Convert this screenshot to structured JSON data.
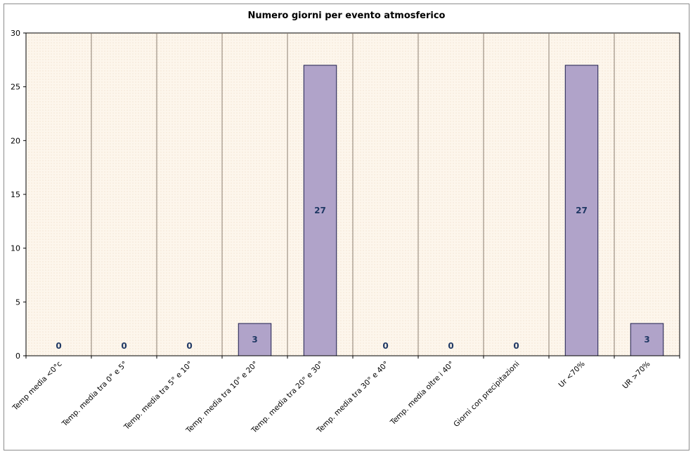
{
  "chart_data": {
    "type": "bar",
    "title": "Numero giorni per evento atmosferico",
    "categories": [
      "Temp media <0°c",
      "Temp. media tra 0° e 5°",
      "Temp. media tra 5° e 10°",
      "Temp. media tra 10° e 20°",
      "Temp. media tra 20° e 30°",
      "Temp. media tra 30° e 40°",
      "Temp. media oltre i 40°",
      "Giorni con precipitazioni",
      "Ur <70%",
      "UR >70%"
    ],
    "values": [
      0,
      0,
      0,
      3,
      27,
      0,
      0,
      0,
      27,
      3
    ],
    "ylim": [
      0,
      30
    ],
    "yticks": [
      "0",
      "5",
      "10",
      "15",
      "20",
      "25",
      "30"
    ],
    "xlabel": "",
    "ylabel": "",
    "grid": "vertical",
    "legend": "none",
    "colors": {
      "bar": "#b0a3c9",
      "bar_border": "#1c1c4a",
      "plot_bg": "#fdf6ec",
      "label": "#1f3864"
    }
  }
}
